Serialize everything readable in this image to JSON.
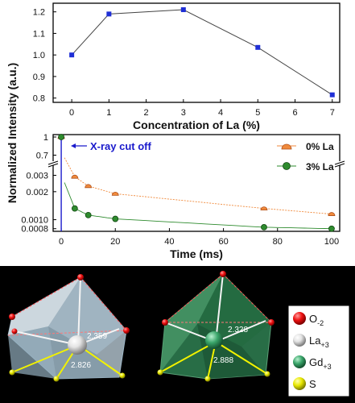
{
  "shared": {
    "ylabel": "Normalized Intensity (a.u.)"
  },
  "chart_data": [
    {
      "type": "line",
      "xlabel": "Concentration of La (%)",
      "xlim": [
        -0.5,
        7.2
      ],
      "ylim": [
        0.78,
        1.24
      ],
      "xticks": [
        "0",
        "1",
        "2",
        "3",
        "4",
        "5",
        "6",
        "7"
      ],
      "yticks": [
        "0.8",
        "0.9",
        "1.0",
        "1.1",
        "1.2"
      ],
      "series": [
        {
          "x": [
            0,
            1,
            3,
            5,
            7
          ],
          "y": [
            1.0,
            1.19,
            1.21,
            1.035,
            0.815
          ]
        }
      ],
      "grid": false
    },
    {
      "type": "scatter",
      "xlabel": "Time (ms)",
      "xlim": [
        -3,
        103
      ],
      "yscale": "log-broken",
      "yticks_upper": [
        "1",
        "0.7"
      ],
      "yticks_lower": [
        "0.003",
        "0.002",
        "0.0010",
        "0.0008"
      ],
      "xticks": [
        "0",
        "20",
        "40",
        "60",
        "80",
        "100"
      ],
      "annotation": "X-ray cut off",
      "legend_position": "top-right",
      "series": [
        {
          "name": "0% La",
          "color": "#f08a3c",
          "x": [
            0,
            5,
            10,
            20,
            75,
            100
          ],
          "y": [
            1.0,
            0.0029,
            0.0023,
            0.0019,
            0.00132,
            0.00115
          ]
        },
        {
          "name": "3% La",
          "color": "#2e8b2e",
          "x": [
            0,
            5,
            10,
            20,
            75,
            100
          ],
          "y": [
            1.0,
            0.00132,
            0.00112,
            0.00102,
            0.00083,
            0.0008
          ]
        }
      ]
    }
  ],
  "structures": {
    "left_bond_lengths": [
      "2.359",
      "2.826"
    ],
    "right_bond_lengths": [
      "2.328",
      "2.888"
    ],
    "legend": [
      {
        "label": "O",
        "sub": "-2",
        "color": "#ee1111"
      },
      {
        "label": "La",
        "sub": "+3",
        "color": "#d8d8d8"
      },
      {
        "label": "Gd",
        "sub": "+3",
        "color": "#3aa56a"
      },
      {
        "label": "S",
        "sub": "",
        "color": "#e8e800"
      }
    ]
  }
}
